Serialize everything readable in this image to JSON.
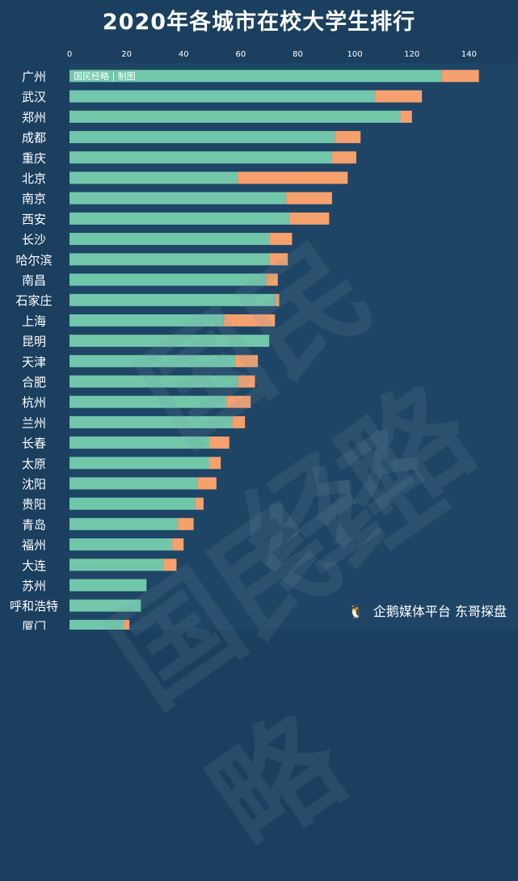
{
  "page": {
    "title": "2020年各城市在校大学生排行",
    "credit": "国民经略 | 制图",
    "watermark": "国民经略",
    "footer": "企鹅媒体平台 东哥探盘"
  },
  "colors": {
    "background": "#1b3f5e",
    "plot_background": "#1e4565",
    "series_base": "#72c7ab",
    "series_extra": "#f6a06e",
    "text": "#ffffff"
  },
  "chart_data": {
    "type": "bar",
    "orientation": "horizontal",
    "stacked": true,
    "title": "2020年各城市在校大学生排行",
    "xlim": [
      0,
      145
    ],
    "xticks": [
      0,
      20,
      40,
      60,
      80,
      100,
      120,
      140
    ],
    "categories": [
      "广州",
      "武汉",
      "郑州",
      "成都",
      "重庆",
      "北京",
      "南京",
      "西安",
      "长沙",
      "哈尔滨",
      "南昌",
      "石家庄",
      "上海",
      "昆明",
      "天津",
      "合肥",
      "杭州",
      "兰州",
      "长春",
      "太原",
      "沈阳",
      "贵阳",
      "青岛",
      "福州",
      "大连",
      "苏州",
      "呼和浩特",
      "厦门"
    ],
    "series": [
      {
        "values": [
          130.5,
          107,
          116,
          93,
          92,
          59,
          76,
          77,
          70,
          70,
          69,
          72,
          54,
          70,
          58,
          59,
          55,
          57,
          49,
          49,
          45,
          44,
          38,
          36,
          33,
          27,
          25,
          19
        ]
      },
      {
        "values": [
          13,
          16.5,
          4,
          9,
          8.5,
          38.5,
          16,
          14,
          8,
          6.5,
          4,
          1.5,
          18,
          0,
          8,
          6,
          8.5,
          4.5,
          7,
          4,
          6.5,
          3,
          5.5,
          4,
          4.5,
          0,
          0,
          2
        ]
      }
    ],
    "grid": false,
    "legend": "none"
  }
}
